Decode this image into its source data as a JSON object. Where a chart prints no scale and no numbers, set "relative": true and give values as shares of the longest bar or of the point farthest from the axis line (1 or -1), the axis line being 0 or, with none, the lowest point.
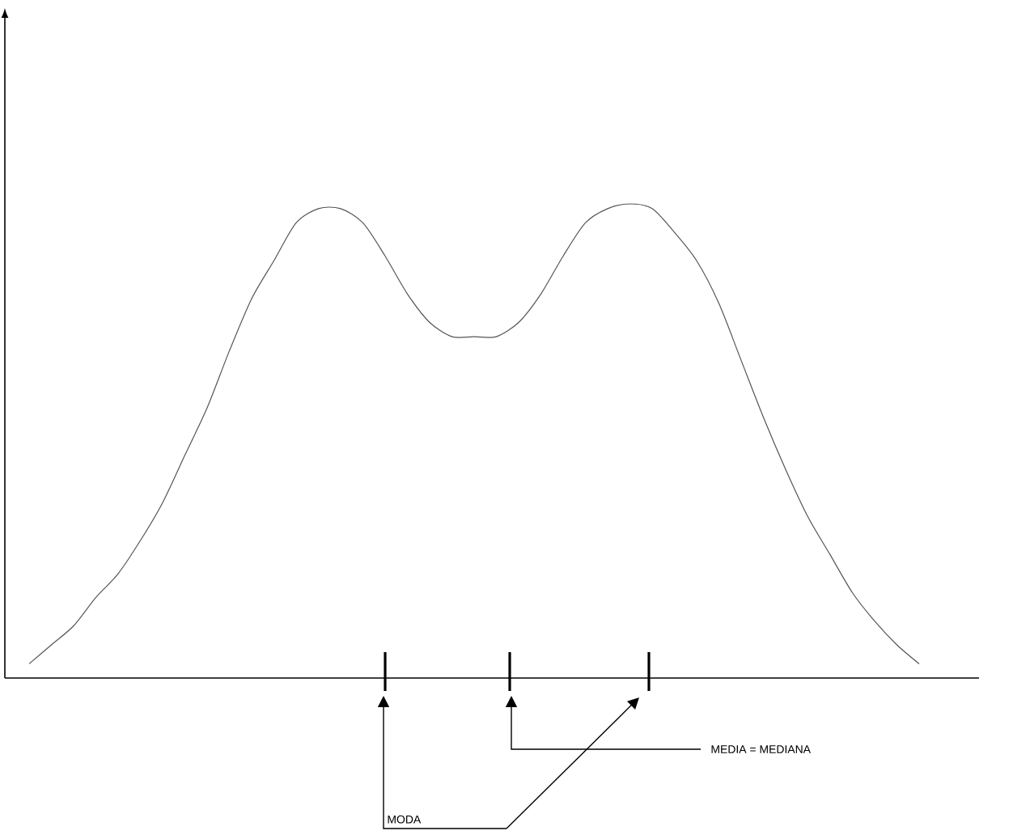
{
  "chart_data": {
    "type": "line",
    "relative": true,
    "categories": [
      null,
      null,
      null,
      null,
      null,
      null,
      null,
      null,
      null,
      null,
      null,
      null,
      null,
      null,
      null,
      null,
      null,
      null,
      null,
      null,
      null,
      null,
      null,
      null,
      null,
      null,
      null,
      null,
      null,
      null,
      null,
      null,
      null,
      null,
      null,
      null,
      null,
      null,
      null,
      null,
      null
    ],
    "values": [
      0.03,
      0.07,
      0.11,
      0.17,
      0.22,
      0.29,
      0.37,
      0.47,
      0.57,
      0.69,
      0.8,
      0.88,
      0.96,
      0.99,
      0.99,
      0.96,
      0.89,
      0.81,
      0.75,
      0.72,
      0.72,
      0.72,
      0.75,
      0.81,
      0.89,
      0.96,
      0.99,
      1.0,
      0.99,
      0.94,
      0.88,
      0.79,
      0.67,
      0.55,
      0.44,
      0.34,
      0.26,
      0.18,
      0.12,
      0.07,
      0.03
    ],
    "color": "#555555",
    "annotations": [
      "MODA",
      "MEDIA = MEDIANA"
    ]
  }
}
